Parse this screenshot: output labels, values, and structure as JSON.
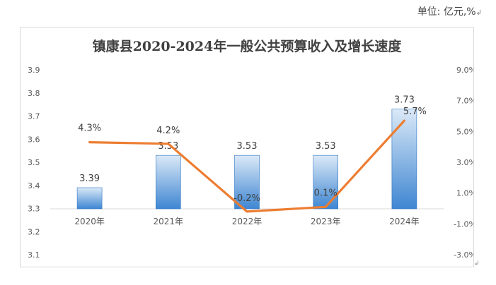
{
  "header": {
    "unit_note": "单位: 亿元,%",
    "unit_mark": "↲"
  },
  "trail_mark": "↲",
  "chart_data": {
    "type": "bar",
    "title": "镇康县2020-2024年一般公共预算收入及增长速度",
    "categories": [
      "2020年",
      "2021年",
      "2022年",
      "2023年",
      "2024年"
    ],
    "series": [
      {
        "kind": "bar",
        "axis": "left",
        "values": [
          3.39,
          3.53,
          3.53,
          3.53,
          3.73
        ],
        "labels": [
          "3.39",
          "3.53",
          "3.53",
          "3.53",
          "3.73"
        ]
      },
      {
        "kind": "line",
        "axis": "right",
        "values": [
          4.3,
          4.2,
          -0.2,
          0.1,
          5.7
        ],
        "labels": [
          "4.3%",
          "4.2%",
          "-0.2%",
          "0.1%",
          "5.7%"
        ]
      }
    ],
    "y_left": {
      "ylim": [
        3.1,
        3.9
      ],
      "ticks": [
        "3.1",
        "3.2",
        "3.3",
        "3.4",
        "3.5",
        "3.6",
        "3.7",
        "3.8",
        "3.9"
      ]
    },
    "y_right": {
      "ylim": [
        -3.0,
        9.0
      ],
      "ticks": [
        "-3.0%",
        "-1.0%",
        "1.0%",
        "3.0%",
        "5.0%",
        "7.0%",
        "9.0%"
      ]
    },
    "bar_baseline": 3.3,
    "grid": false,
    "legend": "none",
    "colors": {
      "bar_top": "#dbe9f7",
      "bar_bottom": "#3e86d2",
      "bar_edge": "#2f75c4",
      "line": "#ed7d31",
      "text": "#404040",
      "axis": "#d9d9d9"
    }
  }
}
